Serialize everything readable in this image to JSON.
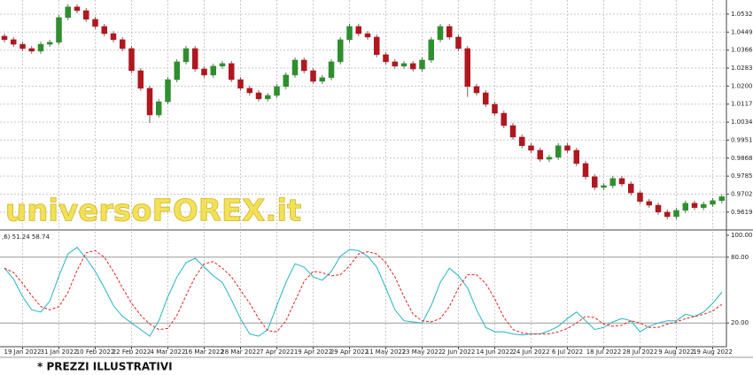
{
  "chart_data": [
    {
      "type": "candlestick",
      "watermark": "universoFOREX.it",
      "up_color": "#2f8f2f",
      "down_color": "#b0171f",
      "wick_color": "#666666",
      "ylim": [
        0.9545,
        1.0597
      ],
      "yticks": [
        {
          "value": 1.0532,
          "label": "1.05320"
        },
        {
          "value": 1.0449,
          "label": "1.04490"
        },
        {
          "value": 1.0366,
          "label": "1.03660"
        },
        {
          "value": 1.0283,
          "label": "1.02830"
        },
        {
          "value": 1.02,
          "label": "1.02000"
        },
        {
          "value": 1.0117,
          "label": "1.01170"
        },
        {
          "value": 1.0034,
          "label": "1.00340"
        },
        {
          "value": 0.9951,
          "label": "0.99510"
        },
        {
          "value": 0.9868,
          "label": "0.98680"
        },
        {
          "value": 0.9785,
          "label": "0.97850"
        },
        {
          "value": 0.9702,
          "label": "0.97020"
        },
        {
          "value": 0.9619,
          "label": "0.96190"
        }
      ],
      "grid": true,
      "open": [
        1.043,
        1.0414,
        1.0393,
        1.0373,
        1.0361,
        1.0393,
        1.0402,
        1.0516,
        1.0565,
        1.0548,
        1.0508,
        1.0475,
        1.0442,
        1.0414,
        1.0373,
        1.0271,
        1.019,
        1.0067,
        1.0128,
        1.023,
        1.0312,
        1.0373,
        1.0279,
        1.0251,
        1.0292,
        1.0304,
        1.023,
        1.019,
        1.0169,
        1.0141,
        1.0157,
        1.0198,
        1.0251,
        1.032,
        1.0271,
        1.0222,
        1.0239,
        1.0312,
        1.0414,
        1.0475,
        1.0442,
        1.0426,
        1.0345,
        1.0312,
        1.0292,
        1.0304,
        1.0279,
        1.032,
        1.0414,
        1.0475,
        1.0426,
        1.0373,
        1.0198,
        1.0169,
        1.0116,
        1.0075,
        1.0018,
        0.9965,
        0.9925,
        0.9904,
        0.9863,
        0.9872,
        0.9925,
        0.9904,
        0.9843,
        0.9782,
        0.9733,
        0.9741,
        0.9774,
        0.9749,
        0.9708,
        0.9668,
        0.9651,
        0.9619,
        0.9598,
        0.9627,
        0.966,
        0.964,
        0.9655,
        0.9672
      ],
      "high": [
        1.0442,
        1.0426,
        1.0405,
        1.0385,
        1.0405,
        1.0414,
        1.0528,
        1.0577,
        1.0577,
        1.056,
        1.052,
        1.0487,
        1.0454,
        1.0426,
        1.0385,
        1.0283,
        1.0202,
        1.014,
        1.0242,
        1.0324,
        1.0385,
        1.0385,
        1.0291,
        1.0304,
        1.0316,
        1.0316,
        1.0242,
        1.0202,
        1.0181,
        1.0169,
        1.021,
        1.0263,
        1.0332,
        1.0332,
        1.0283,
        1.0251,
        1.0324,
        1.0426,
        1.0487,
        1.0487,
        1.0454,
        1.0438,
        1.0357,
        1.0324,
        1.0316,
        1.0316,
        1.0332,
        1.0426,
        1.0487,
        1.0487,
        1.0438,
        1.0385,
        1.021,
        1.0181,
        1.0128,
        1.0087,
        1.003,
        0.9977,
        0.9937,
        0.9916,
        0.9884,
        0.9937,
        0.9937,
        0.9916,
        0.9855,
        0.9794,
        0.9753,
        0.9786,
        0.9786,
        0.9761,
        0.972,
        0.968,
        0.9663,
        0.9631,
        0.9639,
        0.9672,
        0.9672,
        0.9667,
        0.9684,
        0.9702
      ],
      "low": [
        1.0402,
        1.0381,
        1.0361,
        1.0349,
        1.0349,
        1.0381,
        1.039,
        1.0504,
        1.0536,
        1.0496,
        1.0463,
        1.043,
        1.0402,
        1.0361,
        1.0259,
        1.0178,
        1.003,
        1.0055,
        1.0116,
        1.0218,
        1.03,
        1.0267,
        1.0239,
        1.0239,
        1.028,
        1.0218,
        1.0178,
        1.0157,
        1.0129,
        1.0129,
        1.0145,
        1.0186,
        1.0239,
        1.0259,
        1.021,
        1.021,
        1.0227,
        1.03,
        1.0402,
        1.043,
        1.0414,
        1.0333,
        1.03,
        1.028,
        1.028,
        1.0267,
        1.0267,
        1.0308,
        1.0402,
        1.0414,
        1.0361,
        1.015,
        1.0157,
        1.0104,
        1.0063,
        1.0006,
        0.9953,
        0.9913,
        0.9892,
        0.9851,
        0.9851,
        0.986,
        0.9892,
        0.9831,
        0.977,
        0.9721,
        0.9721,
        0.9729,
        0.9737,
        0.9696,
        0.9656,
        0.9639,
        0.9607,
        0.9586,
        0.9586,
        0.9615,
        0.9628,
        0.9628,
        0.9643,
        0.966
      ],
      "close": [
        1.0414,
        1.0393,
        1.0373,
        1.0361,
        1.0393,
        1.0402,
        1.0516,
        1.0565,
        1.0548,
        1.0508,
        1.0475,
        1.0442,
        1.0414,
        1.0373,
        1.0271,
        1.019,
        1.0067,
        1.0128,
        1.023,
        1.0312,
        1.0373,
        1.0279,
        1.0251,
        1.0292,
        1.0304,
        1.023,
        1.019,
        1.0169,
        1.0141,
        1.0157,
        1.0198,
        1.0251,
        1.032,
        1.0271,
        1.0222,
        1.0239,
        1.0312,
        1.0414,
        1.0475,
        1.0442,
        1.0426,
        1.0345,
        1.0312,
        1.0292,
        1.0304,
        1.0279,
        1.032,
        1.0414,
        1.0475,
        1.0426,
        1.0373,
        1.0198,
        1.0169,
        1.0116,
        1.0075,
        1.0018,
        0.9965,
        0.9925,
        0.9904,
        0.9863,
        0.9872,
        0.9925,
        0.9904,
        0.9843,
        0.9782,
        0.9733,
        0.9741,
        0.9774,
        0.9749,
        0.9708,
        0.9668,
        0.9651,
        0.9619,
        0.9598,
        0.9627,
        0.966,
        0.964,
        0.9655,
        0.9672,
        0.969
      ]
    },
    {
      "type": "line",
      "indicator_label": ",6) 51.24 58.74",
      "ylim": [
        0,
        100
      ],
      "yticks": [
        {
          "value": 100,
          "label": "100.00"
        },
        {
          "value": 80,
          "label": "80.00"
        },
        {
          "value": 20,
          "label": "20.00"
        }
      ],
      "levels": [
        80,
        20
      ],
      "grid": true,
      "xticks": [
        {
          "value": 2,
          "label": "19 Jan 2022"
        },
        {
          "value": 6,
          "label": "31 Jan 2022"
        },
        {
          "value": 10,
          "label": "10 Feb 2022"
        },
        {
          "value": 14,
          "label": "22 Feb 2022"
        },
        {
          "value": 18,
          "label": "4 Mar 2022"
        },
        {
          "value": 22,
          "label": "16 Mar 2022"
        },
        {
          "value": 26,
          "label": "28 Mar 2022"
        },
        {
          "value": 30,
          "label": "7 Apr 2022"
        },
        {
          "value": 34,
          "label": "19 Apr 2022"
        },
        {
          "value": 38,
          "label": "29 Apr 2022"
        },
        {
          "value": 42,
          "label": "11 May 2022"
        },
        {
          "value": 46,
          "label": "23 May 2022"
        },
        {
          "value": 50,
          "label": "2 Jun 2022"
        },
        {
          "value": 54,
          "label": "14 Jun 2022"
        },
        {
          "value": 58,
          "label": "24 Jun 2022"
        },
        {
          "value": 62,
          "label": "6 Jul 2022"
        },
        {
          "value": 66,
          "label": "18 Jul 2022"
        },
        {
          "value": 70,
          "label": "28 Jul 2022"
        },
        {
          "value": 74,
          "label": "9 Aug 2022"
        },
        {
          "value": 78,
          "label": "19 Aug 2022"
        }
      ],
      "series": [
        {
          "color": "#22b3c2",
          "dash": false,
          "values": [
            70,
            60,
            44,
            32,
            30,
            40,
            63,
            83,
            89,
            79,
            67,
            52,
            36,
            26,
            20,
            14,
            8,
            22,
            44,
            62,
            75,
            79,
            71,
            63,
            57,
            41,
            24,
            10,
            8,
            14,
            36,
            57,
            74,
            71,
            62,
            59,
            67,
            81,
            87,
            86,
            81,
            71,
            52,
            32,
            22,
            21,
            20,
            36,
            57,
            70,
            63,
            52,
            32,
            16,
            12,
            12,
            10,
            9,
            10,
            10,
            13,
            17,
            24,
            30,
            22,
            14,
            16,
            21,
            24,
            22,
            12,
            17,
            20,
            22,
            22,
            28,
            26,
            30,
            38,
            48
          ]
        },
        {
          "color": "#e0201b",
          "dash": true,
          "values": [
            70,
            66,
            56,
            45,
            35,
            32,
            35,
            48,
            68,
            84,
            86,
            80,
            67,
            52,
            38,
            27,
            19,
            14,
            15,
            27,
            45,
            62,
            74,
            76,
            70,
            62,
            50,
            38,
            24,
            13,
            12,
            22,
            40,
            58,
            67,
            66,
            63,
            64,
            72,
            83,
            85,
            83,
            75,
            62,
            44,
            28,
            22,
            21,
            24,
            35,
            52,
            64,
            64,
            56,
            42,
            25,
            14,
            11,
            10,
            10,
            10,
            12,
            15,
            20,
            26,
            25,
            19,
            17,
            18,
            22,
            20,
            16,
            16,
            19,
            21,
            24,
            26,
            28,
            31,
            37
          ]
        }
      ]
    }
  ],
  "footnote": "* PREZZI ILLUSTRATIVI"
}
